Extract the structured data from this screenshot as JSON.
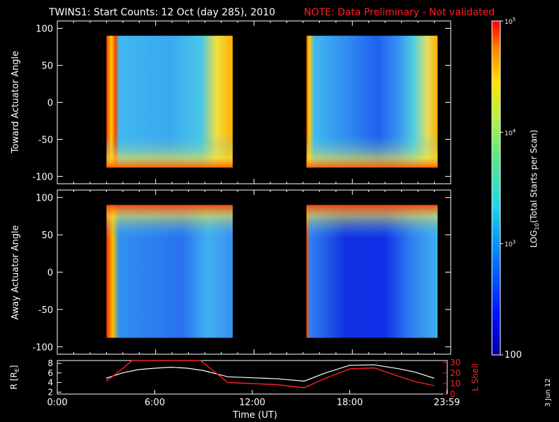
{
  "title": "TWINS1: Start Counts: 12 Oct (day 285), 2010",
  "note": "NOTE: Data Preliminary - Not validated",
  "date_stamp": "3 Jun 12",
  "colors": {
    "background": "#000000",
    "axis": "#ffffff",
    "note": "#ff2020",
    "lshell": "#ff2020",
    "radius": "#ffffff"
  },
  "chart_data": [
    {
      "type": "heatmap",
      "name": "toward",
      "ylabel": "Toward Actuator Angle",
      "ylim": [
        -110,
        110
      ],
      "yticks": [
        "100",
        "50",
        "0",
        "-50",
        "-100"
      ],
      "ytick_values": [
        100,
        50,
        0,
        -50,
        -100
      ],
      "xlim_hours": [
        0,
        24
      ],
      "data_extent_y": [
        -88,
        90
      ],
      "data_blocks_hours": [
        [
          3.0,
          10.7
        ],
        [
          15.2,
          23.2
        ]
      ],
      "background_color": "#3fb6f0"
    },
    {
      "type": "heatmap",
      "name": "away",
      "ylabel": "Away Actuator Angle",
      "ylim": [
        -110,
        110
      ],
      "yticks": [
        "100",
        "50",
        "0",
        "-50",
        "-100"
      ],
      "ytick_values": [
        100,
        50,
        0,
        -50,
        -100
      ],
      "xlim_hours": [
        0,
        24
      ],
      "data_extent_y": [
        -88,
        90
      ],
      "data_blocks_hours": [
        [
          3.0,
          10.7
        ],
        [
          15.2,
          23.2
        ]
      ],
      "background_color": "#2f8ff0"
    },
    {
      "type": "line",
      "name": "orbit",
      "ylabel_left": "R [R",
      "ylabel_left_sub": "E",
      "ylabel_left_end": "]",
      "ylabel_right": "L Shell",
      "xlabel": "Time (UT)",
      "xticks": [
        "0:00",
        "6:00",
        "12:00",
        "18:00",
        "23:59"
      ],
      "xtick_hours": [
        0,
        6,
        12,
        18,
        23.98
      ],
      "yticks_left": [
        "8",
        "6",
        "4",
        "2"
      ],
      "ytick_left_values": [
        8,
        6,
        4,
        2
      ],
      "ylim_left": [
        1.6,
        8.6
      ],
      "yticks_right": [
        "30",
        "20",
        "10",
        "0"
      ],
      "ytick_right_values": [
        30,
        20,
        10,
        0
      ],
      "ylim_right": [
        0,
        32
      ],
      "series": [
        {
          "name": "R",
          "x_hours": [
            3.0,
            4.0,
            5.0,
            6.0,
            7.0,
            8.0,
            9.0,
            10.5,
            12.0,
            13.5,
            15.2,
            16.5,
            18.0,
            19.5,
            21.0,
            22.0,
            23.2
          ],
          "values": [
            4.9,
            6.0,
            6.7,
            7.0,
            7.2,
            7.0,
            6.5,
            5.2,
            5.0,
            4.8,
            4.3,
            6.0,
            7.6,
            7.7,
            6.9,
            6.2,
            4.9
          ]
        },
        {
          "name": "L Shell",
          "x_hours": [
            3.0,
            4.0,
            4.6,
            8.8,
            9.3,
            10.5,
            12.0,
            13.5,
            15.2,
            16.5,
            18.0,
            19.5,
            21.0,
            22.0,
            23.2
          ],
          "values": [
            12,
            24,
            32,
            32,
            26,
            11,
            10,
            9,
            6,
            15,
            24,
            25,
            17,
            12,
            8
          ]
        }
      ]
    }
  ],
  "colorbar": {
    "label": "LOG",
    "label_sub": "10",
    "label_rest": "(Total Starts per Scan)",
    "ticks": [
      {
        "value": 100,
        "text": "100",
        "kind": "plain"
      },
      {
        "value": 1000,
        "base": "10",
        "exp": "3",
        "kind": "power"
      },
      {
        "value": 10000,
        "base": "10",
        "exp": "4",
        "kind": "power"
      },
      {
        "value": 100000,
        "base": "10",
        "exp": "5",
        "kind": "power"
      }
    ],
    "range": [
      100,
      100000
    ]
  }
}
